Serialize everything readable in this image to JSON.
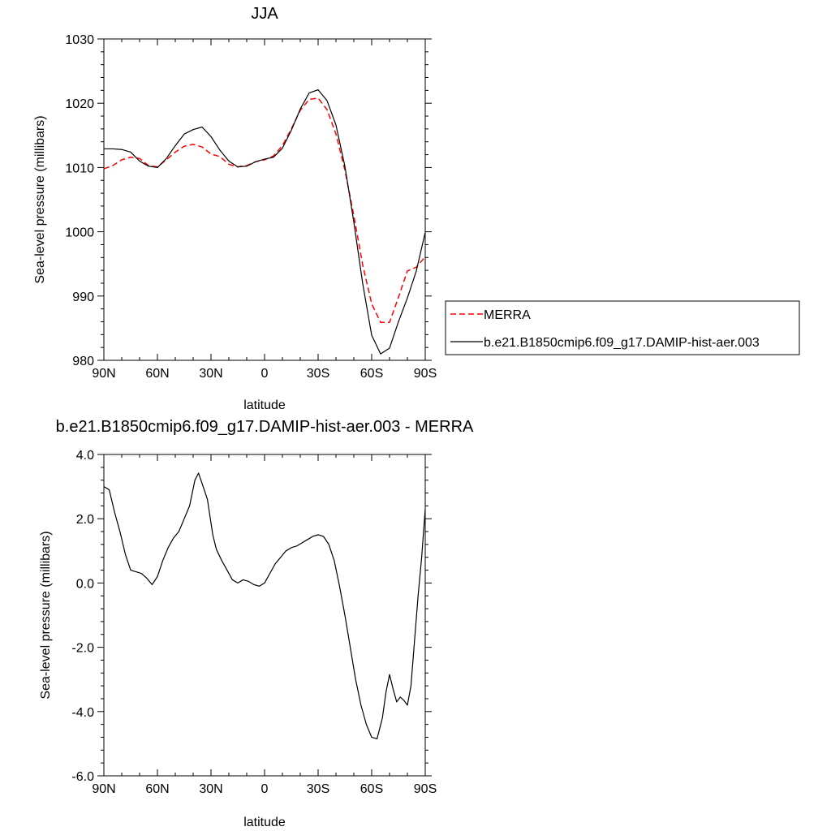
{
  "chart_data": [
    {
      "type": "line",
      "title": "JJA",
      "xlabel": "latitude",
      "ylabel": "Sea-level pressure (millibars)",
      "xlim": [
        90,
        -90
      ],
      "ylim": [
        980,
        1030
      ],
      "x_ticks": [
        90,
        60,
        30,
        0,
        -30,
        -60,
        -90
      ],
      "x_tick_labels": [
        "90N",
        "60N",
        "30N",
        "0",
        "30S",
        "60S",
        "90S"
      ],
      "y_ticks": [
        980,
        990,
        1000,
        1010,
        1020,
        1030
      ],
      "y_tick_labels": [
        "980",
        "990",
        "1000",
        "1010",
        "1020",
        "1030"
      ],
      "grid": false,
      "legend": "outside-right",
      "series": [
        {
          "name": "MERRA",
          "color": "#ff0000",
          "dash": "dashed",
          "x": [
            90,
            85,
            80,
            75,
            70,
            65,
            60,
            55,
            50,
            45,
            40,
            35,
            30,
            25,
            20,
            15,
            10,
            5,
            0,
            -5,
            -10,
            -15,
            -20,
            -25,
            -30,
            -35,
            -40,
            -45,
            -50,
            -55,
            -60,
            -65,
            -70,
            -75,
            -80,
            -85,
            -90
          ],
          "y": [
            1009.8,
            1010.3,
            1011.2,
            1011.6,
            1011.4,
            1010.3,
            1010.1,
            1011.2,
            1012.4,
            1013.3,
            1013.6,
            1013.2,
            1012.1,
            1011.7,
            1010.5,
            1010.1,
            1010.3,
            1010.9,
            1011.2,
            1011.8,
            1013.4,
            1016.0,
            1018.9,
            1020.6,
            1020.8,
            1019.0,
            1015.2,
            1009.6,
            1002.5,
            994.8,
            988.8,
            985.9,
            985.9,
            989.8,
            993.9,
            994.5,
            996.1
          ]
        },
        {
          "name": "b.e21.B1850cmip6.f09_g17.DAMIP-hist-aer.003",
          "color": "#000000",
          "dash": "solid",
          "x": [
            90,
            85,
            80,
            75,
            70,
            65,
            60,
            55,
            50,
            45,
            40,
            35,
            30,
            25,
            20,
            15,
            10,
            5,
            0,
            -5,
            -10,
            -15,
            -20,
            -25,
            -30,
            -35,
            -40,
            -45,
            -50,
            -55,
            -60,
            -65,
            -70,
            -75,
            -80,
            -85,
            -90
          ],
          "y": [
            1012.9,
            1012.9,
            1012.8,
            1012.4,
            1011.0,
            1010.2,
            1010.0,
            1011.4,
            1013.4,
            1015.2,
            1015.9,
            1016.3,
            1014.8,
            1012.7,
            1011.0,
            1010.1,
            1010.2,
            1010.9,
            1011.3,
            1011.6,
            1013.0,
            1015.8,
            1019.1,
            1021.6,
            1022.1,
            1020.4,
            1016.6,
            1010.2,
            1001.5,
            991.9,
            983.9,
            981.0,
            981.9,
            986.0,
            989.7,
            993.9,
            999.9
          ]
        }
      ]
    },
    {
      "type": "line",
      "title": "b.e21.B1850cmip6.f09_g17.DAMIP-hist-aer.003 - MERRA",
      "xlabel": "latitude",
      "ylabel": "Sea-level pressure (millibars)",
      "xlim": [
        90,
        -90
      ],
      "ylim": [
        -6,
        4
      ],
      "x_ticks": [
        90,
        60,
        30,
        0,
        -30,
        -60,
        -90
      ],
      "x_tick_labels": [
        "90N",
        "60N",
        "30N",
        "0",
        "30S",
        "60S",
        "90S"
      ],
      "y_ticks": [
        -6,
        -4,
        -2,
        0,
        2,
        4
      ],
      "y_tick_labels": [
        "-6.0",
        "-4.0",
        "-2.0",
        "0.0",
        "2.0",
        "4.0"
      ],
      "grid": false,
      "series": [
        {
          "color": "#000000",
          "dash": "solid",
          "x": [
            90,
            87,
            84,
            81,
            78,
            75,
            72,
            69,
            66,
            63,
            60,
            57,
            54,
            51,
            48,
            45,
            42,
            39,
            37,
            35,
            32,
            29,
            27,
            24,
            21,
            18,
            15,
            12,
            9,
            6,
            3,
            0,
            -3,
            -6,
            -9,
            -12,
            -15,
            -18,
            -21,
            -24,
            -27,
            -30,
            -33,
            -36,
            -39,
            -42,
            -45,
            -48,
            -51,
            -54,
            -57,
            -60,
            -63,
            -66,
            -68,
            -70,
            -72,
            -74,
            -76,
            -78,
            -80,
            -82,
            -84,
            -86,
            -88,
            -90
          ],
          "y": [
            3.0,
            2.9,
            2.2,
            1.6,
            0.9,
            0.4,
            0.35,
            0.3,
            0.15,
            -0.05,
            0.2,
            0.7,
            1.1,
            1.4,
            1.6,
            2.0,
            2.4,
            3.2,
            3.42,
            3.1,
            2.6,
            1.5,
            1.05,
            0.7,
            0.4,
            0.1,
            0.0,
            0.1,
            0.05,
            -0.05,
            -0.1,
            0.0,
            0.3,
            0.6,
            0.8,
            1.0,
            1.1,
            1.15,
            1.25,
            1.35,
            1.45,
            1.5,
            1.45,
            1.2,
            0.7,
            -0.1,
            -1.0,
            -2.0,
            -3.0,
            -3.8,
            -4.4,
            -4.8,
            -4.85,
            -4.2,
            -3.4,
            -2.85,
            -3.3,
            -3.7,
            -3.55,
            -3.65,
            -3.8,
            -3.2,
            -1.8,
            -0.4,
            0.8,
            2.3
          ]
        }
      ]
    }
  ],
  "legend": {
    "entries": [
      {
        "label": "MERRA",
        "color": "#ff0000",
        "dash": "dashed"
      },
      {
        "label": "b.e21.B1850cmip6.f09_g17.DAMIP-hist-aer.003",
        "color": "#000000",
        "dash": "solid"
      }
    ]
  }
}
